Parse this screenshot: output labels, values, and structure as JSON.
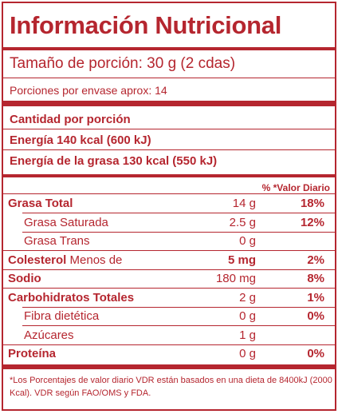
{
  "label": {
    "title": "Información Nutricional",
    "serving_size": "Tamaño de porción: 30 g (2 cdas)",
    "servings_per_container": "Porciones por envase aprox: 14",
    "amount_per_serving": "Cantidad por porción",
    "energy": "Energía 140 kcal (600 kJ)",
    "energy_from_fat": "Energía de la grasa 130 kcal (550 kJ)",
    "daily_value_header": "% *Valor Diario",
    "nutrients": [
      {
        "name": "Grasa Total",
        "suffix": "",
        "amount": "14 g",
        "dv": "18%",
        "bold": true,
        "indent": false,
        "amount_bold": false
      },
      {
        "name": "Grasa Saturada",
        "suffix": "",
        "amount": "2.5 g",
        "dv": "12%",
        "bold": false,
        "indent": true,
        "amount_bold": false
      },
      {
        "name": "Grasa Trans",
        "suffix": "",
        "amount": "0 g",
        "dv": "",
        "bold": false,
        "indent": true,
        "amount_bold": false
      },
      {
        "name": "Colesterol",
        "suffix": " Menos de",
        "amount": "5 mg",
        "dv": "2%",
        "bold": true,
        "indent": false,
        "amount_bold": true
      },
      {
        "name": "Sodio",
        "suffix": "",
        "amount": "180 mg",
        "dv": "8%",
        "bold": true,
        "indent": false,
        "amount_bold": false
      },
      {
        "name": "Carbohidratos Totales",
        "suffix": "",
        "amount": "2 g",
        "dv": "1%",
        "bold": true,
        "indent": false,
        "amount_bold": false
      },
      {
        "name": "Fibra dietética",
        "suffix": "",
        "amount": "0 g",
        "dv": "0%",
        "bold": false,
        "indent": true,
        "amount_bold": false
      },
      {
        "name": "Azúcares",
        "suffix": "",
        "amount": "1 g",
        "dv": "",
        "bold": false,
        "indent": true,
        "amount_bold": false
      },
      {
        "name": "Proteína",
        "suffix": "",
        "amount": "0 g",
        "dv": "0%",
        "bold": true,
        "indent": false,
        "amount_bold": false
      }
    ],
    "footnote": "*Los Porcentajes de valor diario VDR están basados en una dieta de 8400kJ (2000 Kcal). VDR según FAO/OMS y FDA."
  },
  "colors": {
    "accent": "#b5262f",
    "background": "#ffffff"
  }
}
